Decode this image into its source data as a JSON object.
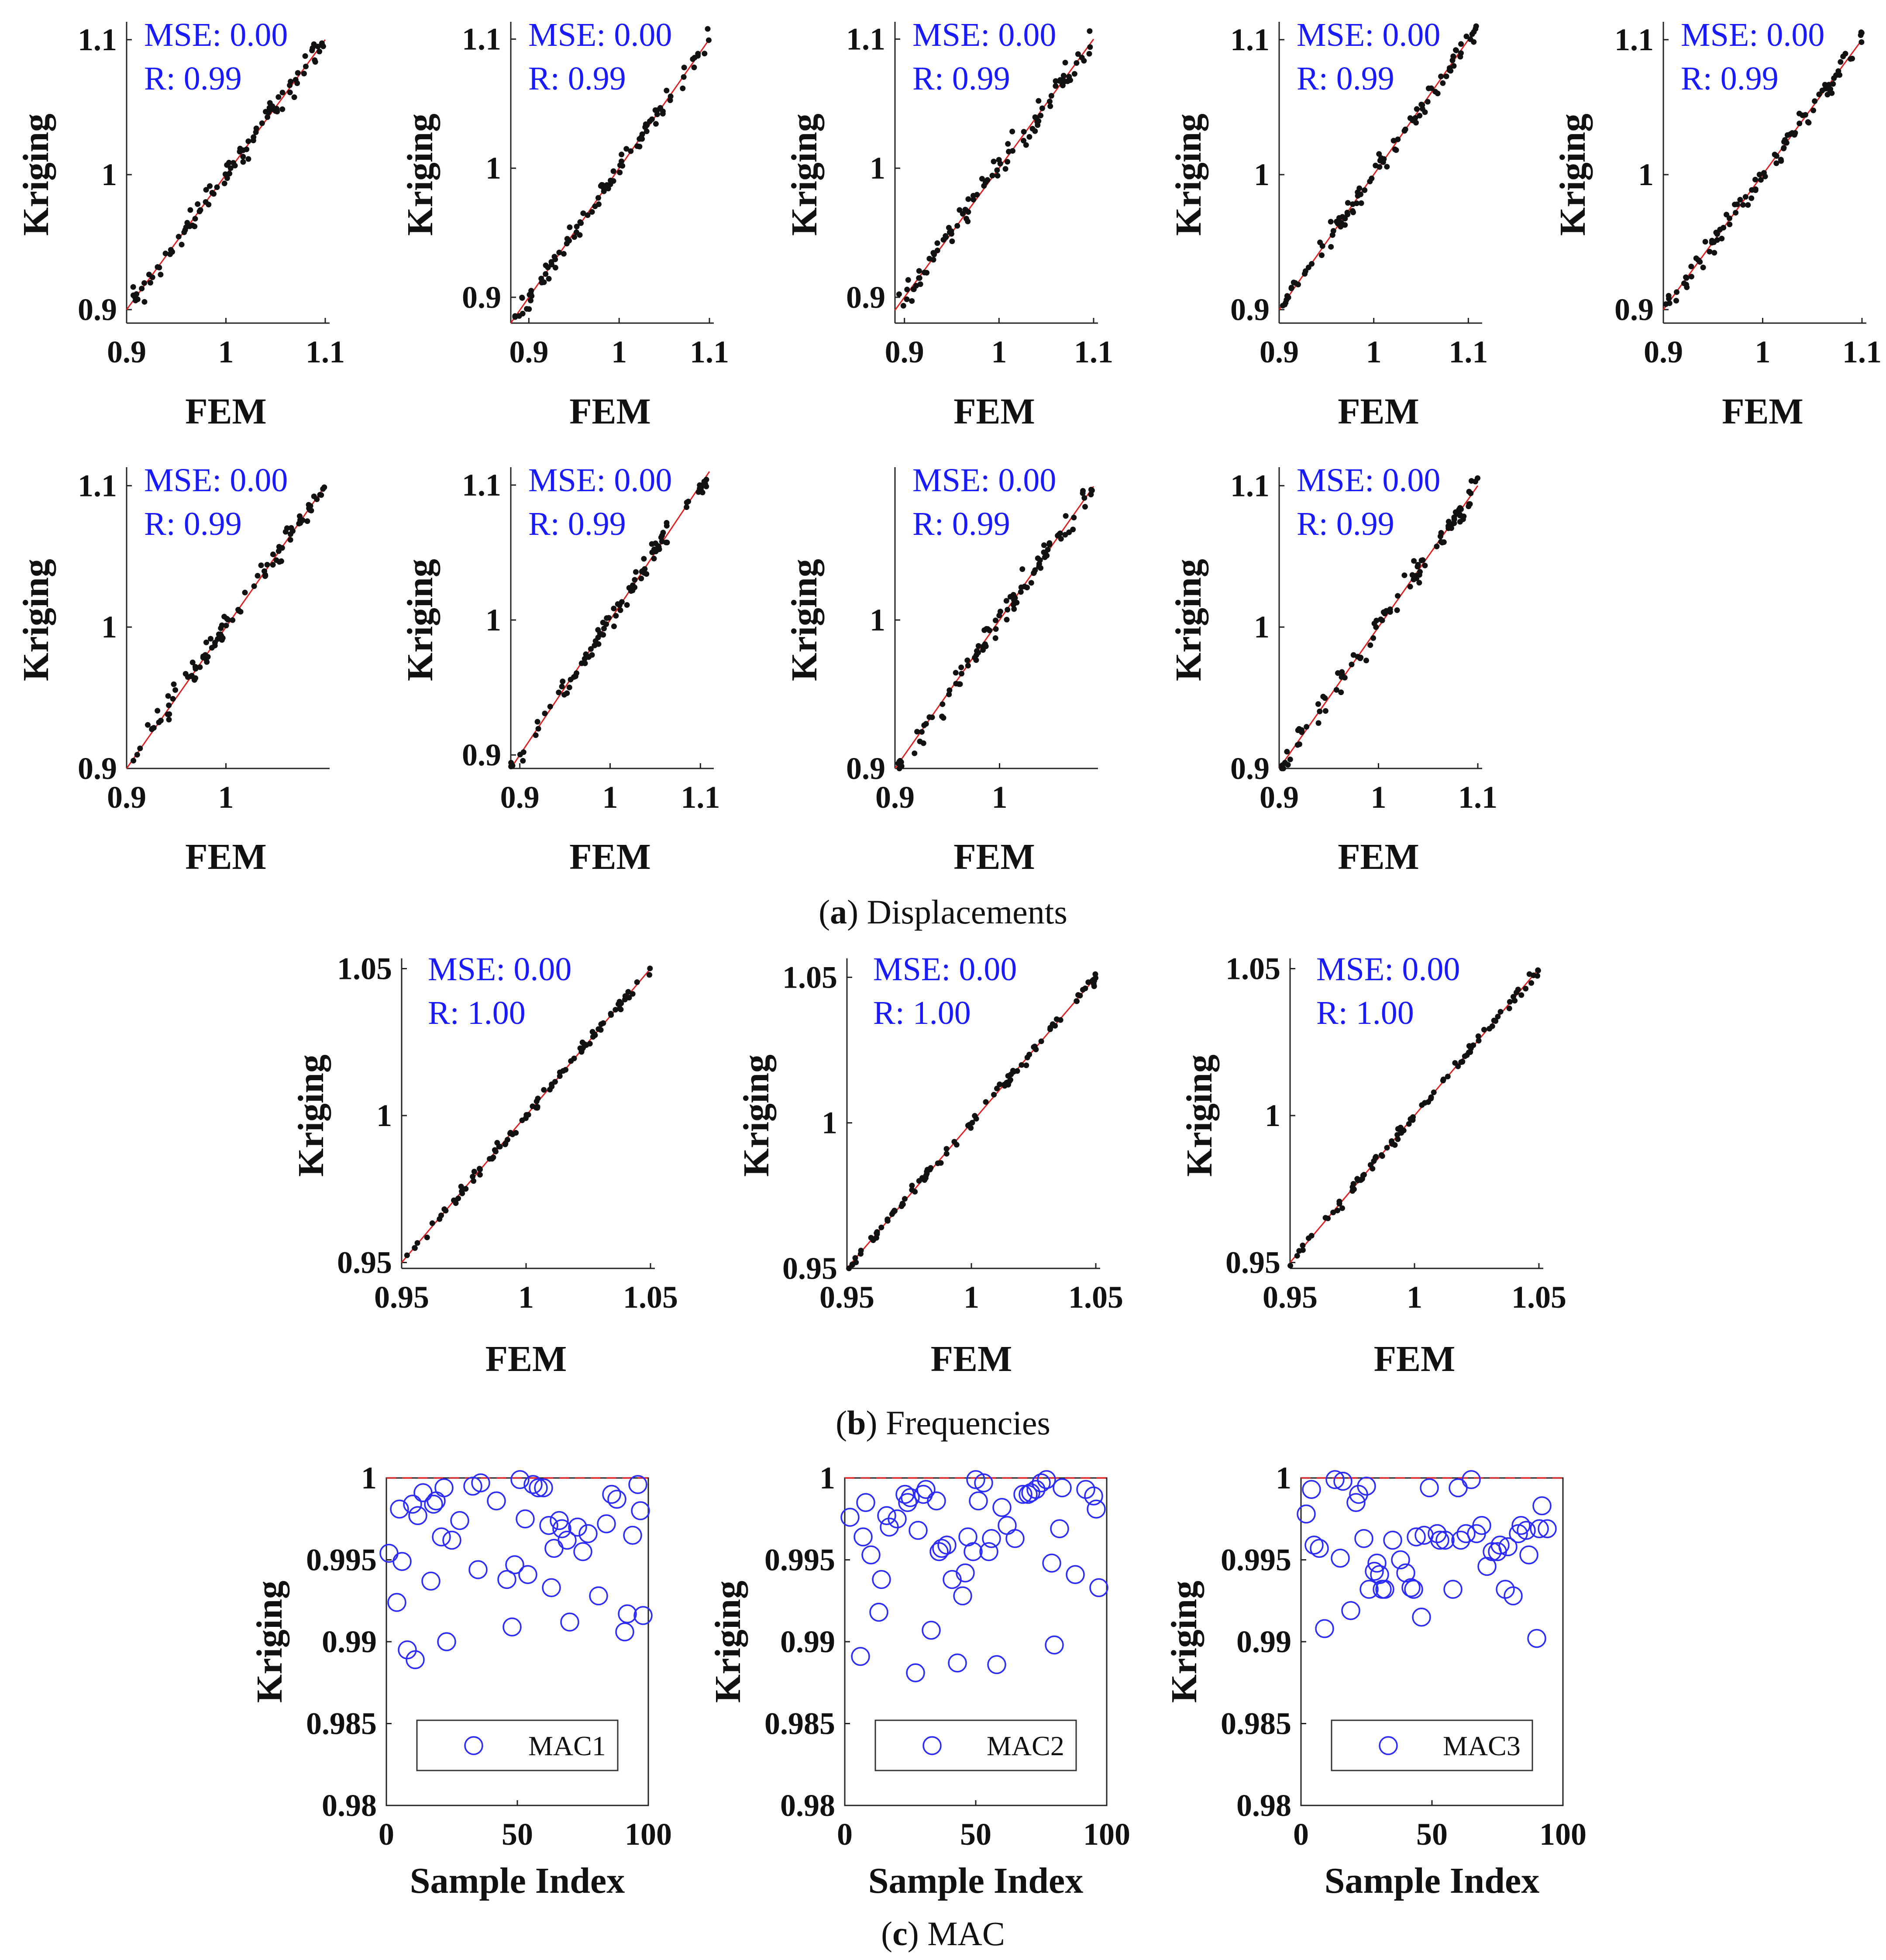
{
  "figure": {
    "captions": {
      "a": {
        "letter": "a",
        "text": "Displacements"
      },
      "b": {
        "letter": "b",
        "text": "Frequencies"
      },
      "c": {
        "letter": "c",
        "text": "MAC"
      }
    }
  },
  "chart_data": [
    {
      "id": "disp1",
      "group": "a",
      "type": "scatter",
      "xlabel": "FEM",
      "ylabel": "Kriging",
      "xlim": [
        0.9,
        1.1
      ],
      "ylim": [
        0.89,
        1.11
      ],
      "xticks": [
        "0.9",
        "1",
        "1.1"
      ],
      "yticks": [
        "0.9",
        "1",
        "1.1"
      ],
      "stats": [
        "MSE: 0.00",
        "R: 0.99"
      ],
      "reference_line": "y = x",
      "seed": 11,
      "noise": 0.007,
      "sample_points": [
        {
          "x": 0.9,
          "y": 0.89
        },
        {
          "x": 0.95,
          "y": 0.94
        },
        {
          "x": 1.0,
          "y": 0.995
        },
        {
          "x": 1.05,
          "y": 1.05
        },
        {
          "x": 1.1,
          "y": 1.11
        }
      ]
    },
    {
      "id": "disp2",
      "group": "a",
      "type": "scatter",
      "xlabel": "FEM",
      "ylabel": "Kriging",
      "xlim": [
        0.88,
        1.1
      ],
      "ylim": [
        0.88,
        1.11
      ],
      "xticks": [
        "0.9",
        "1",
        "1.1"
      ],
      "yticks": [
        "0.9",
        "1",
        "1.1"
      ],
      "stats": [
        "MSE: 0.00",
        "R: 0.99"
      ],
      "reference_line": "y = x",
      "seed": 23,
      "noise": 0.007,
      "sample_points": [
        {
          "x": 0.9,
          "y": 0.905
        },
        {
          "x": 0.95,
          "y": 0.945
        },
        {
          "x": 1.0,
          "y": 0.99
        },
        {
          "x": 1.05,
          "y": 1.05
        },
        {
          "x": 1.1,
          "y": 1.1
        }
      ]
    },
    {
      "id": "disp3",
      "group": "a",
      "type": "scatter",
      "xlabel": "FEM",
      "ylabel": "Kriging",
      "xlim": [
        0.89,
        1.1
      ],
      "ylim": [
        0.88,
        1.11
      ],
      "xticks": [
        "0.9",
        "1",
        "1.1"
      ],
      "yticks": [
        "0.9",
        "1",
        "1.1"
      ],
      "stats": [
        "MSE: 0.00",
        "R: 0.99"
      ],
      "reference_line": "y = x",
      "seed": 37,
      "noise": 0.008,
      "sample_points": [
        {
          "x": 0.9,
          "y": 0.895
        },
        {
          "x": 0.95,
          "y": 0.95
        },
        {
          "x": 1.0,
          "y": 0.995
        },
        {
          "x": 1.05,
          "y": 1.05
        },
        {
          "x": 1.1,
          "y": 1.1
        }
      ]
    },
    {
      "id": "disp4",
      "group": "a",
      "type": "scatter",
      "xlabel": "FEM",
      "ylabel": "Kriging",
      "xlim": [
        0.9,
        1.11
      ],
      "ylim": [
        0.89,
        1.11
      ],
      "xticks": [
        "0.9",
        "1",
        "1.1"
      ],
      "yticks": [
        "0.9",
        "1",
        "1.1"
      ],
      "stats": [
        "MSE: 0.00",
        "R: 0.99"
      ],
      "reference_line": "y = x",
      "seed": 41,
      "noise": 0.006,
      "sample_points": [
        {
          "x": 0.9,
          "y": 0.9
        },
        {
          "x": 0.95,
          "y": 0.95
        },
        {
          "x": 1.0,
          "y": 1.0
        },
        {
          "x": 1.05,
          "y": 1.05
        },
        {
          "x": 1.1,
          "y": 1.1
        }
      ]
    },
    {
      "id": "disp5",
      "group": "a",
      "type": "scatter",
      "xlabel": "FEM",
      "ylabel": "Kriging",
      "xlim": [
        0.9,
        1.1
      ],
      "ylim": [
        0.89,
        1.11
      ],
      "xticks": [
        "0.9",
        "1",
        "1.1"
      ],
      "yticks": [
        "0.9",
        "1",
        "1.1"
      ],
      "stats": [
        "MSE: 0.00",
        "R: 0.99"
      ],
      "reference_line": "y = x",
      "seed": 53,
      "noise": 0.007,
      "sample_points": [
        {
          "x": 0.9,
          "y": 0.9
        },
        {
          "x": 0.95,
          "y": 0.945
        },
        {
          "x": 1.0,
          "y": 1.0
        },
        {
          "x": 1.05,
          "y": 1.05
        },
        {
          "x": 1.1,
          "y": 1.105
        }
      ]
    },
    {
      "id": "disp6",
      "group": "a",
      "type": "scatter",
      "xlabel": "FEM",
      "ylabel": "Kriging",
      "xlim": [
        0.9,
        1.1
      ],
      "ylim": [
        0.9,
        1.11
      ],
      "xticks": [
        "0.9",
        "1"
      ],
      "yticks": [
        "0.9",
        "1",
        "1.1"
      ],
      "stats": [
        "MSE: 0.00",
        "R: 0.99"
      ],
      "reference_line": "y = x",
      "seed": 61,
      "noise": 0.007,
      "sample_points": [
        {
          "x": 0.9,
          "y": 0.9
        },
        {
          "x": 0.95,
          "y": 0.95
        },
        {
          "x": 1.0,
          "y": 1.0
        },
        {
          "x": 1.05,
          "y": 1.05
        },
        {
          "x": 1.1,
          "y": 1.1
        }
      ]
    },
    {
      "id": "disp7",
      "group": "a",
      "type": "scatter",
      "xlabel": "FEM",
      "ylabel": "Kriging",
      "xlim": [
        0.89,
        1.11
      ],
      "ylim": [
        0.89,
        1.11
      ],
      "xticks": [
        "0.9",
        "1",
        "1.1"
      ],
      "yticks": [
        "0.9",
        "1",
        "1.1"
      ],
      "stats": [
        "MSE: 0.00",
        "R: 0.99"
      ],
      "reference_line": "y = x",
      "seed": 71,
      "noise": 0.006,
      "sample_points": [
        {
          "x": 0.9,
          "y": 0.9
        },
        {
          "x": 0.95,
          "y": 0.95
        },
        {
          "x": 1.0,
          "y": 1.0
        },
        {
          "x": 1.05,
          "y": 1.05
        },
        {
          "x": 1.1,
          "y": 1.1
        }
      ]
    },
    {
      "id": "disp8",
      "group": "a",
      "type": "scatter",
      "xlabel": "FEM",
      "ylabel": "Kriging",
      "xlim": [
        0.9,
        1.09
      ],
      "ylim": [
        0.9,
        1.1
      ],
      "xticks": [
        "0.9",
        "1"
      ],
      "yticks": [
        "0.9",
        "1"
      ],
      "stats": [
        "MSE: 0.00",
        "R: 0.99"
      ],
      "reference_line": "y = x",
      "seed": 83,
      "noise": 0.007,
      "sample_points": [
        {
          "x": 0.9,
          "y": 0.9
        },
        {
          "x": 0.95,
          "y": 0.945
        },
        {
          "x": 1.0,
          "y": 0.995
        },
        {
          "x": 1.05,
          "y": 1.045
        },
        {
          "x": 1.09,
          "y": 1.09
        }
      ]
    },
    {
      "id": "disp9",
      "group": "a",
      "type": "scatter",
      "xlabel": "FEM",
      "ylabel": "Kriging",
      "xlim": [
        0.9,
        1.1
      ],
      "ylim": [
        0.9,
        1.11
      ],
      "xticks": [
        "0.9",
        "1",
        "1.1"
      ],
      "yticks": [
        "0.9",
        "1",
        "1.1"
      ],
      "stats": [
        "MSE: 0.00",
        "R: 0.99"
      ],
      "reference_line": "y = x",
      "seed": 97,
      "noise": 0.007,
      "sample_points": [
        {
          "x": 0.9,
          "y": 0.905
        },
        {
          "x": 0.95,
          "y": 0.95
        },
        {
          "x": 1.0,
          "y": 1.0
        },
        {
          "x": 1.05,
          "y": 1.05
        },
        {
          "x": 1.1,
          "y": 1.105
        }
      ]
    },
    {
      "id": "freq1",
      "group": "b",
      "type": "scatter",
      "xlabel": "FEM",
      "ylabel": "Kriging",
      "xlim": [
        0.95,
        1.05
      ],
      "ylim": [
        0.948,
        1.052
      ],
      "xticks": [
        "0.95",
        "1",
        "1.05"
      ],
      "yticks": [
        "0.95",
        "1",
        "1.05"
      ],
      "stats": [
        "MSE: 0.00",
        "R: 1.00"
      ],
      "reference_line": "y = x",
      "seed": 101,
      "noise": 0.0015,
      "sample_points": [
        {
          "x": 0.95,
          "y": 0.95
        },
        {
          "x": 0.975,
          "y": 0.975
        },
        {
          "x": 1.0,
          "y": 1.0
        },
        {
          "x": 1.025,
          "y": 1.025
        },
        {
          "x": 1.05,
          "y": 1.05
        }
      ]
    },
    {
      "id": "freq2",
      "group": "b",
      "type": "scatter",
      "xlabel": "FEM",
      "ylabel": "Kriging",
      "xlim": [
        0.95,
        1.05
      ],
      "ylim": [
        0.95,
        1.055
      ],
      "xticks": [
        "0.95",
        "1",
        "1.05"
      ],
      "yticks": [
        "0.95",
        "1",
        "1.05"
      ],
      "stats": [
        "MSE: 0.00",
        "R: 1.00"
      ],
      "reference_line": "y = x",
      "seed": 113,
      "noise": 0.0015,
      "sample_points": [
        {
          "x": 0.95,
          "y": 0.95
        },
        {
          "x": 0.975,
          "y": 0.975
        },
        {
          "x": 1.0,
          "y": 1.0
        },
        {
          "x": 1.025,
          "y": 1.025
        },
        {
          "x": 1.05,
          "y": 1.05
        }
      ]
    },
    {
      "id": "freq3",
      "group": "b",
      "type": "scatter",
      "xlabel": "FEM",
      "ylabel": "Kriging",
      "xlim": [
        0.95,
        1.05
      ],
      "ylim": [
        0.948,
        1.052
      ],
      "xticks": [
        "0.95",
        "1",
        "1.05"
      ],
      "yticks": [
        "0.95",
        "1",
        "1.05"
      ],
      "stats": [
        "MSE: 0.00",
        "R: 1.00"
      ],
      "reference_line": "y = x",
      "seed": 127,
      "noise": 0.0015,
      "sample_points": [
        {
          "x": 0.95,
          "y": 0.95
        },
        {
          "x": 0.975,
          "y": 0.975
        },
        {
          "x": 1.0,
          "y": 1.0
        },
        {
          "x": 1.025,
          "y": 1.025
        },
        {
          "x": 1.05,
          "y": 1.05
        }
      ]
    },
    {
      "id": "mac1",
      "group": "c",
      "type": "scatter",
      "xlabel": "Sample Index",
      "ylabel": "Kriging",
      "xlim": [
        0,
        100
      ],
      "ylim": [
        0.98,
        1.0
      ],
      "xticks": [
        "0",
        "50",
        "100"
      ],
      "yticks": [
        "0.98",
        "0.985",
        "0.99",
        "0.995",
        "1"
      ],
      "legend": "MAC1",
      "reference_line": "y = 1",
      "x": [
        1,
        4,
        5,
        6,
        8,
        10,
        11,
        12,
        14,
        17,
        18,
        19,
        21,
        22,
        23,
        25,
        28,
        33,
        35,
        36,
        42,
        46,
        48,
        49,
        51,
        53,
        54,
        56,
        58,
        60,
        62,
        63,
        64,
        66,
        67,
        69,
        70,
        73,
        75,
        77,
        81,
        84,
        86,
        88,
        91,
        92,
        94,
        96,
        97,
        98
      ],
      "y": [
        0.9954,
        0.9924,
        0.9981,
        0.9949,
        0.9895,
        0.9984,
        0.9889,
        0.9977,
        0.9991,
        0.9937,
        0.9984,
        0.9986,
        0.9964,
        0.9994,
        0.99,
        0.9962,
        0.9974,
        0.9995,
        0.9944,
        0.9997,
        0.9986,
        0.9938,
        0.9909,
        0.9947,
        0.9999,
        0.9975,
        0.9941,
        0.9996,
        0.9994,
        0.9994,
        0.9971,
        0.9933,
        0.9957,
        0.9974,
        0.9969,
        0.9962,
        0.9912,
        0.997,
        0.9955,
        0.9966,
        0.9928,
        0.9972,
        0.999,
        0.9987,
        0.9906,
        0.9917,
        0.9965,
        0.9996,
        0.998,
        0.9916
      ]
    },
    {
      "id": "mac2",
      "group": "c",
      "type": "scatter",
      "xlabel": "Sample Index",
      "ylabel": "Kriging",
      "xlim": [
        0,
        100
      ],
      "ylim": [
        0.98,
        1.0
      ],
      "xticks": [
        "0",
        "50",
        "100"
      ],
      "yticks": [
        "0.98",
        "0.985",
        "0.99",
        "0.995",
        "1"
      ],
      "legend": "MAC2",
      "reference_line": "y = 1",
      "x": [
        2,
        6,
        7,
        8,
        10,
        13,
        14,
        16,
        17,
        20,
        23,
        24,
        25,
        27,
        28,
        30,
        31,
        33,
        35,
        36,
        37,
        39,
        41,
        43,
        45,
        46,
        47,
        49,
        50,
        51,
        53,
        55,
        56,
        58,
        60,
        62,
        65,
        68,
        70,
        71,
        73,
        75,
        77,
        79,
        80,
        82,
        83,
        88,
        92,
        95,
        96,
        97
      ],
      "y": [
        0.9976,
        0.9891,
        0.9964,
        0.9985,
        0.9953,
        0.9918,
        0.9938,
        0.9977,
        0.997,
        0.9975,
        0.999,
        0.9985,
        0.9988,
        0.9881,
        0.9968,
        0.999,
        0.9993,
        0.9907,
        0.9986,
        0.9955,
        0.9957,
        0.9959,
        0.9938,
        0.9887,
        0.9928,
        0.9942,
        0.9964,
        0.9955,
        0.9999,
        0.9986,
        0.9997,
        0.9955,
        0.9963,
        0.9886,
        0.9982,
        0.9971,
        0.9963,
        0.999,
        0.999,
        0.9991,
        0.9993,
        0.9997,
        0.9999,
        0.9948,
        0.9898,
        0.9969,
        0.9994,
        0.9941,
        0.9993,
        0.9989,
        0.9981,
        0.9933
      ]
    },
    {
      "id": "mac3",
      "group": "c",
      "type": "scatter",
      "xlabel": "Sample Index",
      "ylabel": "Kriging",
      "xlim": [
        0,
        100
      ],
      "ylim": [
        0.98,
        1.0
      ],
      "xticks": [
        "0",
        "50",
        "100"
      ],
      "yticks": [
        "0.98",
        "0.985",
        "0.99",
        "0.995",
        "1"
      ],
      "legend": "MAC3",
      "reference_line": "y = 1",
      "x": [
        2,
        4,
        5,
        7,
        9,
        13,
        15,
        16,
        19,
        21,
        22,
        24,
        25,
        26,
        28,
        29,
        30,
        31,
        32,
        35,
        38,
        40,
        42,
        43,
        44,
        46,
        47,
        49,
        52,
        53,
        55,
        58,
        60,
        61,
        63,
        65,
        67,
        69,
        71,
        73,
        75,
        76,
        78,
        79,
        81,
        83,
        84,
        86,
        87,
        90,
        91,
        92,
        94
      ],
      "y": [
        0.9978,
        0.9993,
        0.9959,
        0.9957,
        0.9908,
        0.9999,
        0.9951,
        0.9998,
        0.9919,
        0.9985,
        0.999,
        0.9963,
        0.9995,
        0.9932,
        0.9943,
        0.9948,
        0.9941,
        0.9932,
        0.9932,
        0.9962,
        0.995,
        0.9942,
        0.9933,
        0.9932,
        0.9964,
        0.9915,
        0.9965,
        0.9994,
        0.9966,
        0.9962,
        0.9962,
        0.9932,
        0.9994,
        0.9962,
        0.9966,
        0.9999,
        0.9966,
        0.9971,
        0.9946,
        0.9955,
        0.9955,
        0.9959,
        0.9932,
        0.9958,
        0.9928,
        0.9966,
        0.9971,
        0.9968,
        0.9953,
        0.9902,
        0.9969,
        0.9983,
        0.9969
      ]
    }
  ]
}
